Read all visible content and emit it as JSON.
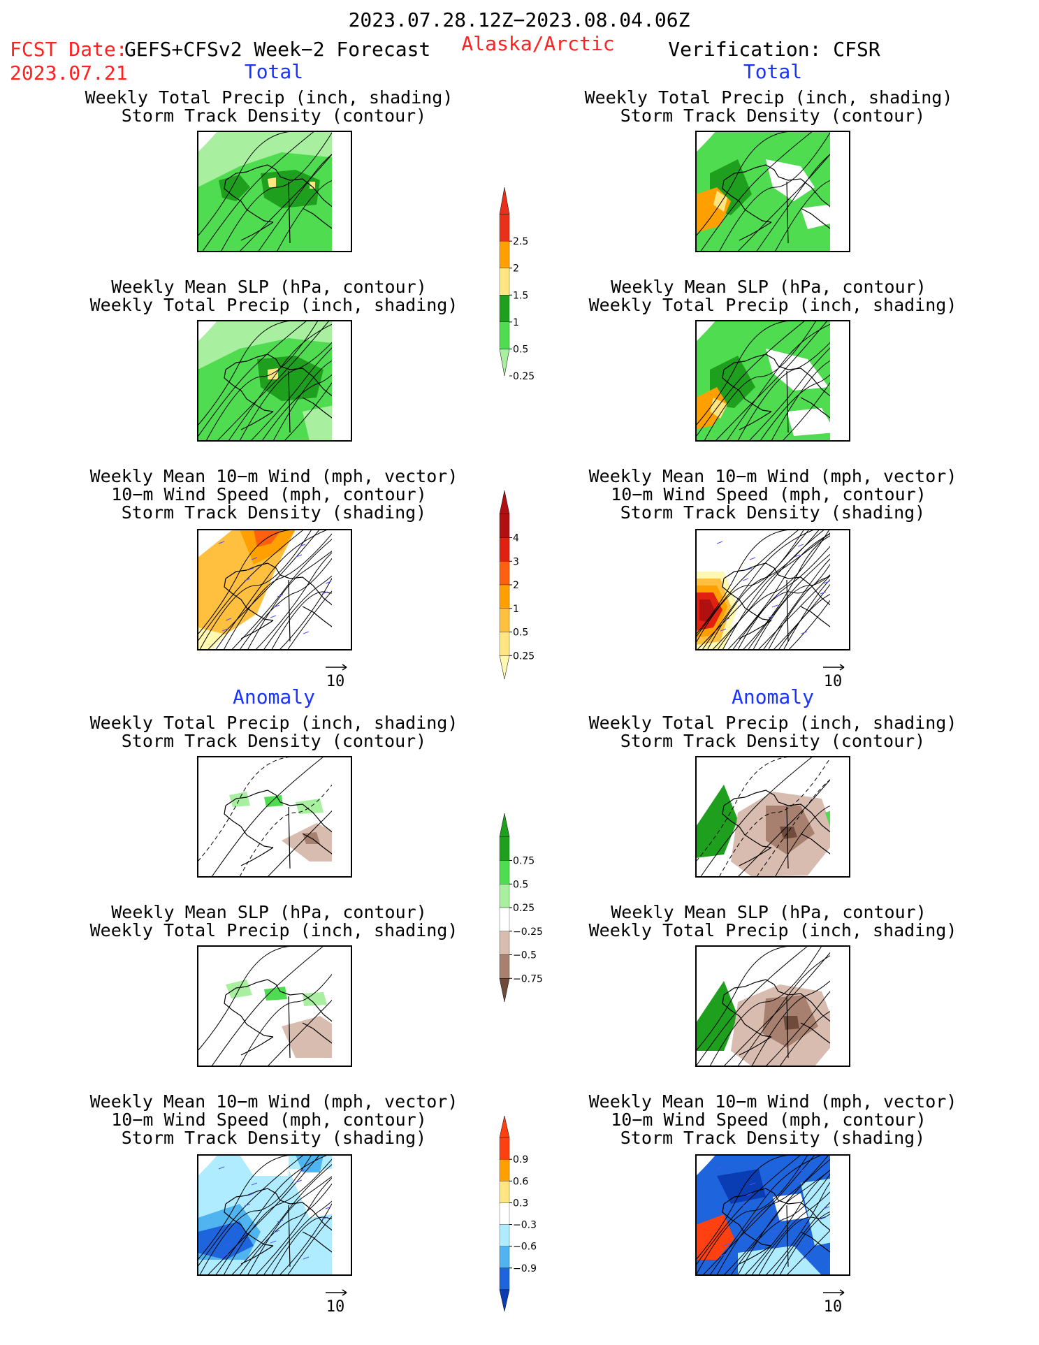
{
  "header": {
    "date_range": "2023.07.28.12Z−2023.08.04.06Z",
    "fcst_label": "FCST Date:",
    "fcst_model": "GEFS+CFSv2 Week−2 Forecast",
    "fcst_date": "2023.07.21",
    "region": "Alaska/Arctic",
    "verification": "Verification: CFSR"
  },
  "sections": {
    "total": "Total",
    "anomaly": "Anomaly"
  },
  "titles": {
    "precip_storm": [
      "Weekly Total Precip (inch, shading)",
      "Storm Track Density (contour)"
    ],
    "slp_precip": [
      "Weekly Mean SLP (hPa, contour)",
      "Weekly Total Precip (inch, shading)"
    ],
    "wind_storm": [
      "Weekly Mean 10−m Wind (mph, vector)",
      "10−m Wind Speed (mph, contour)",
      "Storm Track Density (shading)"
    ]
  },
  "vector_ref": "10",
  "colorbars": [
    {
      "id": "precip-total",
      "ticks": [
        "2.5",
        "2",
        "1.5",
        "1",
        "0.5",
        "0.25"
      ],
      "colors": [
        "#e8301a",
        "#ffa000",
        "#ffe680",
        "#1ea01e",
        "#50dc50",
        "#a8f0a0"
      ]
    },
    {
      "id": "storm-total",
      "ticks": [
        "4",
        "3",
        "2",
        "1",
        "0.5",
        "0.25"
      ],
      "colors": [
        "#b01010",
        "#e02010",
        "#ff6010",
        "#ffa000",
        "#ffc040",
        "#ffe680",
        "#fff8b0"
      ]
    },
    {
      "id": "precip-anom",
      "ticks": [
        "0.75",
        "0.5",
        "0.25",
        "−0.25",
        "−0.5",
        "−0.75"
      ],
      "colors": [
        "#1ea01e",
        "#50dc50",
        "#a8f0a0",
        "#ffffff",
        "#d8bcb0",
        "#a88070",
        "#704a3a"
      ]
    },
    {
      "id": "storm-anom",
      "ticks": [
        "0.9",
        "0.6",
        "0.3",
        "−0.3",
        "−0.6",
        "−0.9"
      ],
      "colors": [
        "#ff4010",
        "#ffa000",
        "#ffe680",
        "#ffffff",
        "#b0ecff",
        "#50b4f0",
        "#1e64dc",
        "#0a3cb4"
      ]
    }
  ],
  "chart_data": [
    {
      "type": "heatmap",
      "panel": "total-fcst-precip-storm",
      "title": "Weekly Total Precip (inch, shading) / Storm Track Density (contour)"
    },
    {
      "type": "heatmap",
      "panel": "total-fcst-slp-precip",
      "title": "Weekly Mean SLP (hPa, contour) / Weekly Total Precip (inch, shading)"
    },
    {
      "type": "heatmap",
      "panel": "total-fcst-wind-storm",
      "title": "Weekly Mean 10-m Wind / 10-m Wind Speed / Storm Track Density"
    },
    {
      "type": "heatmap",
      "panel": "total-verif-precip-storm",
      "title": "Weekly Total Precip (inch, shading) / Storm Track Density (contour)"
    },
    {
      "type": "heatmap",
      "panel": "total-verif-slp-precip",
      "title": "Weekly Mean SLP (hPa, contour) / Weekly Total Precip (inch, shading)"
    },
    {
      "type": "heatmap",
      "panel": "total-verif-wind-storm",
      "title": "Weekly Mean 10-m Wind / 10-m Wind Speed / Storm Track Density"
    },
    {
      "type": "heatmap",
      "panel": "anom-fcst-precip-storm",
      "title": "Weekly Total Precip (inch, shading) / Storm Track Density (contour)"
    },
    {
      "type": "heatmap",
      "panel": "anom-fcst-slp-precip",
      "title": "Weekly Mean SLP (hPa, contour) / Weekly Total Precip (inch, shading)"
    },
    {
      "type": "heatmap",
      "panel": "anom-fcst-wind-storm",
      "title": "Weekly Mean 10-m Wind / 10-m Wind Speed / Storm Track Density"
    },
    {
      "type": "heatmap",
      "panel": "anom-verif-precip-storm",
      "title": "Weekly Total Precip (inch, shading) / Storm Track Density (contour)"
    },
    {
      "type": "heatmap",
      "panel": "anom-verif-slp-precip",
      "title": "Weekly Mean SLP (hPa, contour) / Weekly Total Precip (inch, shading)"
    },
    {
      "type": "heatmap",
      "panel": "anom-verif-wind-storm",
      "title": "Weekly Mean 10-m Wind / 10-m Wind Speed / Storm Track Density"
    }
  ]
}
